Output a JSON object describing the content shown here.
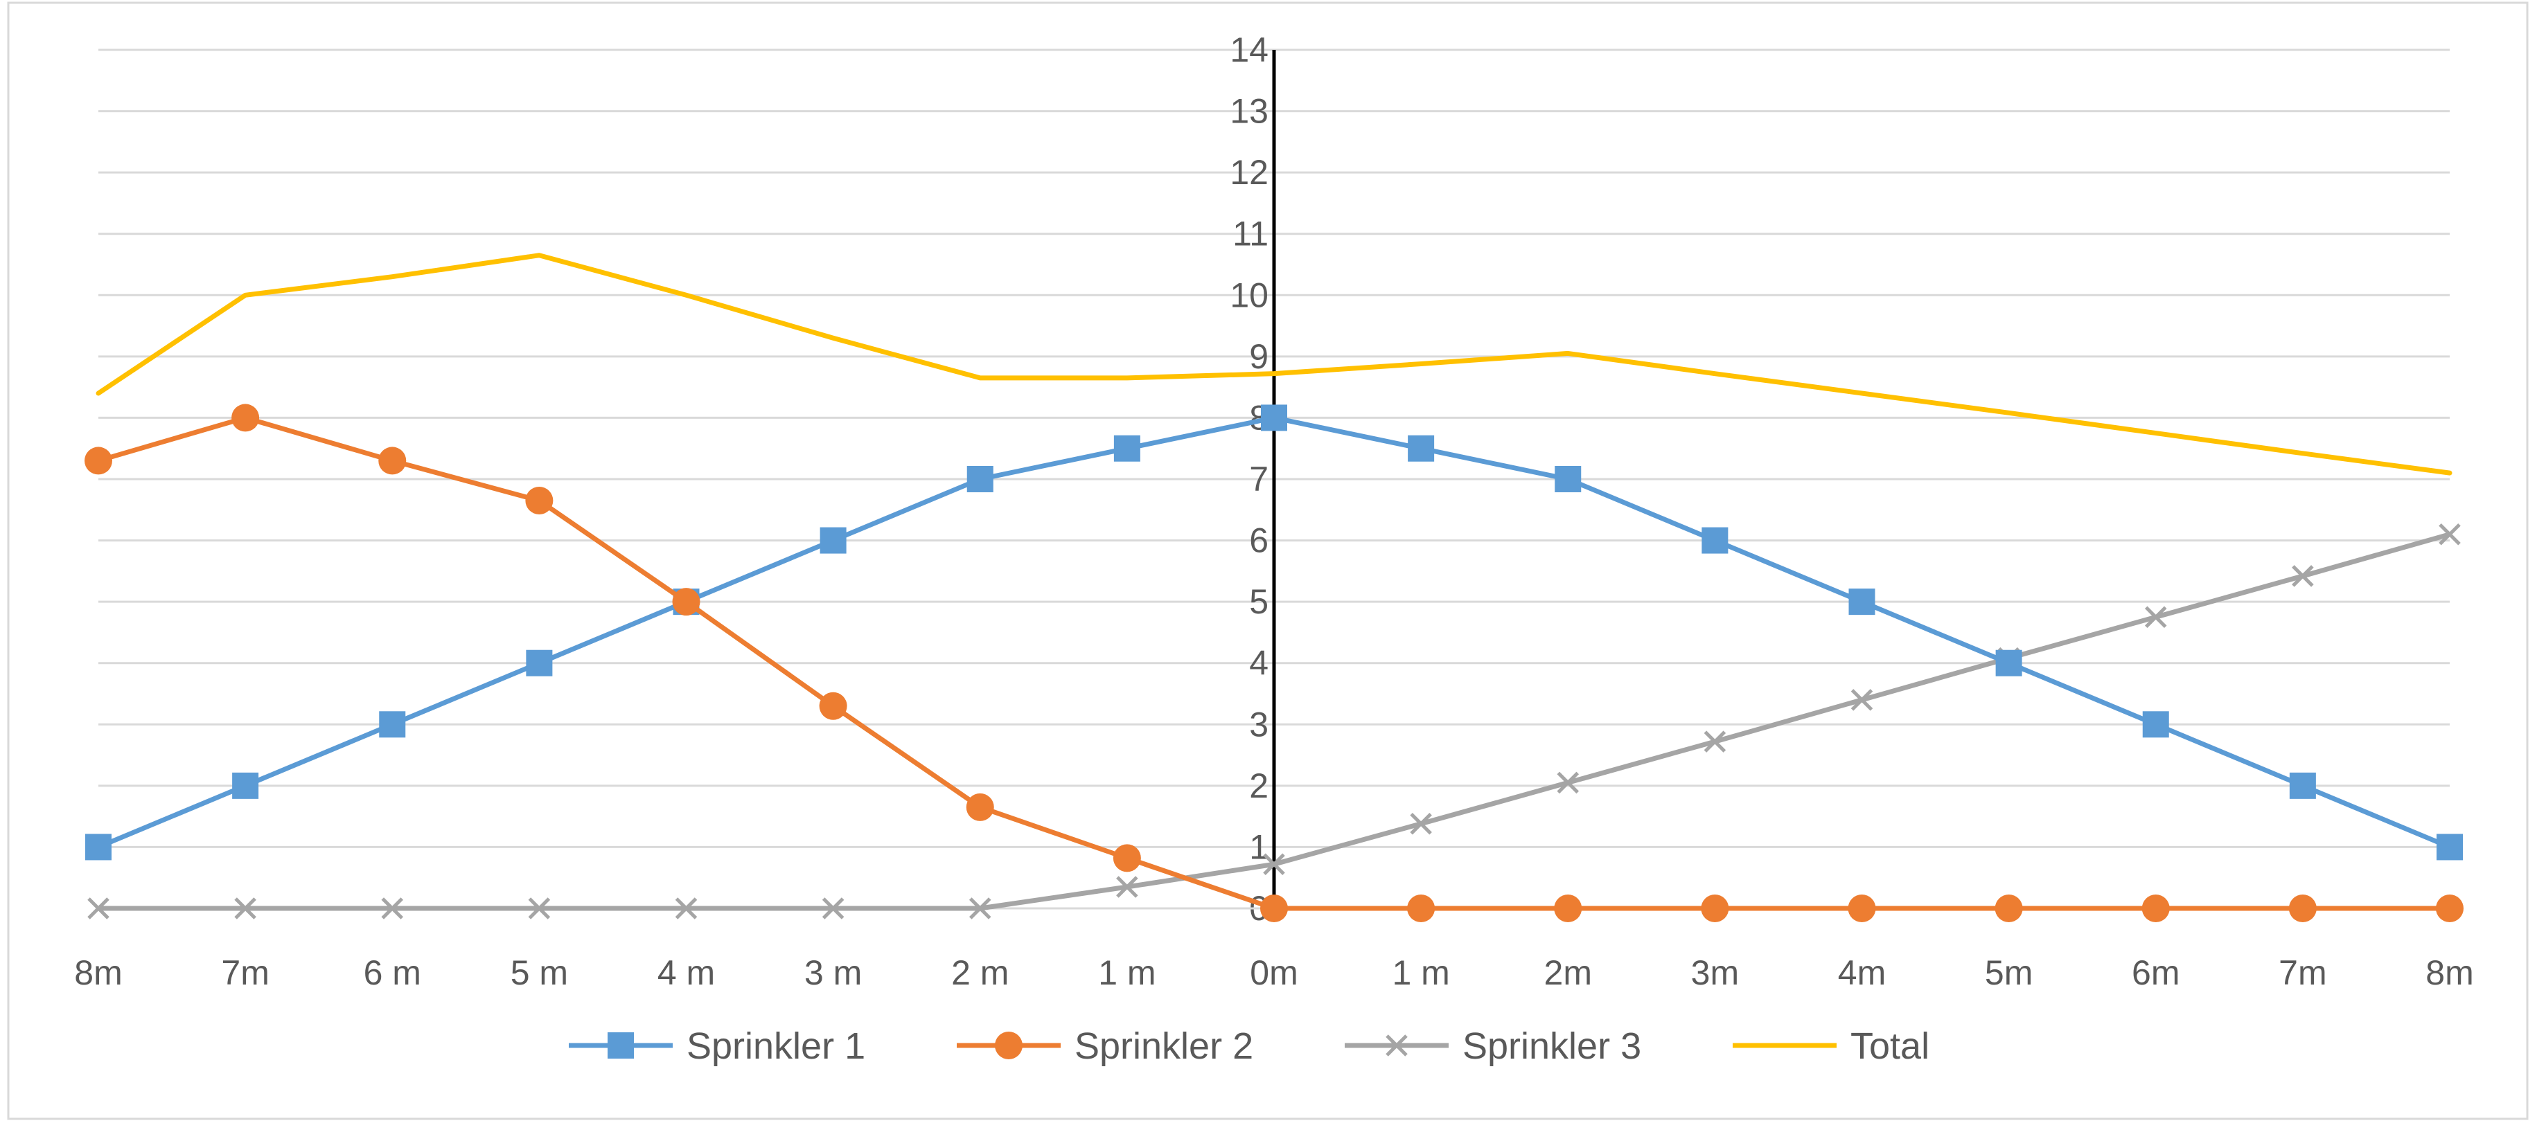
{
  "chart_data": {
    "type": "line",
    "title": "",
    "xlabel": "",
    "ylabel": "",
    "ylim": [
      0,
      14
    ],
    "yticks": [
      0,
      1,
      2,
      3,
      4,
      5,
      6,
      7,
      8,
      9,
      10,
      11,
      12,
      13,
      14
    ],
    "categories": [
      "8m",
      "7m",
      "6 m",
      "5 m",
      "4 m",
      "3 m",
      "2 m",
      "1 m",
      "0m",
      "1 m",
      "2m",
      "3m",
      "4m",
      "5m",
      "6m",
      "7m",
      "8m"
    ],
    "grid": true,
    "legend_position": "bottom",
    "series": [
      {
        "name": "Sprinkler 1",
        "color": "#5b9bd5",
        "marker": "square",
        "values": [
          1,
          2,
          3,
          4,
          5,
          6,
          7,
          7.5,
          8,
          7.5,
          7,
          6,
          5,
          4,
          3,
          2,
          1
        ]
      },
      {
        "name": "Sprinkler 2",
        "color": "#ed7d31",
        "marker": "circle",
        "values": [
          7.3,
          8,
          7.3,
          6.65,
          5,
          3.3,
          1.65,
          0.82,
          0,
          0,
          0,
          0,
          0,
          0,
          0,
          0,
          0
        ]
      },
      {
        "name": "Sprinkler 3",
        "color": "#a5a5a5",
        "marker": "x",
        "values": [
          0,
          0,
          0,
          0,
          0,
          0,
          0,
          0.35,
          0.72,
          1.38,
          2.05,
          2.72,
          3.4,
          4.08,
          4.75,
          5.42,
          6.1
        ]
      },
      {
        "name": "Total",
        "color": "#ffc000",
        "marker": "none",
        "values": [
          8.4,
          10,
          10.3,
          10.65,
          10,
          9.3,
          8.65,
          8.65,
          8.72,
          8.88,
          9.05,
          8.72,
          8.4,
          8.08,
          7.75,
          7.42,
          7.1
        ]
      }
    ]
  }
}
